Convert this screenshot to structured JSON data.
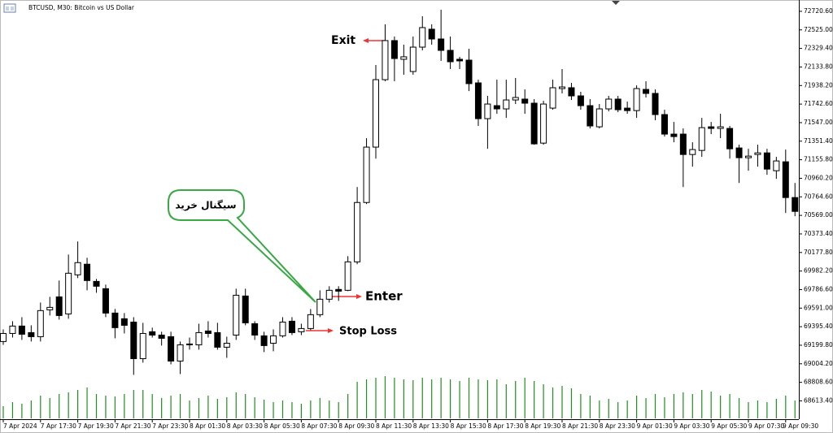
{
  "chart_data": {
    "type": "candlestick",
    "title": "BTCUSD, M30: Bitcoin vs US Dollar",
    "categories": [
      "7 Apr 2024",
      null,
      null,
      null,
      "7 Apr 17:30",
      null,
      null,
      null,
      "7 Apr 19:30",
      null,
      null,
      null,
      "7 Apr 21:30",
      null,
      null,
      null,
      "7 Apr 23:30",
      null,
      null,
      null,
      "8 Apr 01:30",
      null,
      null,
      null,
      "8 Apr 03:30",
      null,
      null,
      null,
      "8 Apr 05:30",
      null,
      null,
      null,
      "8 Apr 07:30",
      null,
      null,
      null,
      "8 Apr 09:30",
      null,
      null,
      null,
      "8 Apr 11:30",
      null,
      null,
      null,
      "8 Apr 13:30",
      null,
      null,
      null,
      "8 Apr 15:30",
      null,
      null,
      null,
      "8 Apr 17:30",
      null,
      null,
      null,
      "8 Apr 19:30",
      null,
      null,
      null,
      "8 Apr 21:30",
      null,
      null,
      null,
      "8 Apr 23:30",
      null,
      null,
      null,
      "9 Apr 01:30",
      null,
      null,
      null,
      "9 Apr 03:30",
      null,
      null,
      null,
      "9 Apr 05:30",
      null,
      null,
      null,
      "9 Apr 07:30",
      null,
      null,
      null,
      "9 Apr 09:30",
      null
    ],
    "open": [
      69239,
      69324,
      69402,
      69333,
      69290,
      69573,
      69710,
      69530,
      69942,
      70054,
      69873,
      69796,
      69539,
      69479,
      69444,
      69058,
      69342,
      69307,
      69290,
      69033,
      69204,
      69204,
      69350,
      69333,
      69179,
      69307,
      69719,
      69427,
      69299,
      69221,
      69299,
      69453,
      69342,
      69376,
      69522,
      69685,
      69788,
      69779,
      70079,
      70705,
      71289,
      72000,
      72412,
      72215,
      72086,
      72343,
      72532,
      72429,
      72309,
      72215,
      72206,
      71966,
      71589,
      71726,
      71692,
      71786,
      71795,
      71752,
      71331,
      71700,
      71906,
      71915,
      71829,
      71726,
      71503,
      71692,
      71795,
      71700,
      71674,
      71897,
      71855,
      71632,
      71426,
      71426,
      71211,
      71254,
      71503,
      71486,
      71486,
      71280,
      71177,
      71211,
      71228,
      71040,
      71134,
      70757
    ],
    "high": [
      69367,
      69453,
      69496,
      69410,
      69650,
      69710,
      69882,
      70156,
      70294,
      70122,
      69899,
      69839,
      69582,
      69539,
      69496,
      69436,
      69385,
      69342,
      69342,
      69239,
      69281,
      69427,
      69453,
      69436,
      69290,
      69796,
      69796,
      69453,
      69342,
      69367,
      69496,
      69496,
      69427,
      69582,
      69779,
      69822,
      69822,
      70139,
      70868,
      71383,
      72155,
      72584,
      72455,
      72369,
      72455,
      72669,
      72584,
      72738,
      72455,
      72241,
      72326,
      72000,
      71829,
      72000,
      72000,
      72018,
      71897,
      71795,
      71777,
      72000,
      72112,
      71966,
      71872,
      71795,
      71743,
      71829,
      71829,
      71769,
      71940,
      71983,
      71897,
      71683,
      71554,
      71486,
      71340,
      71597,
      71554,
      71640,
      71512,
      71314,
      71271,
      71314,
      71271,
      71186,
      71263,
      70911
    ],
    "low": [
      69204,
      69281,
      69256,
      69239,
      69239,
      69513,
      69470,
      69479,
      69908,
      69779,
      69753,
      69496,
      69273,
      69324,
      68887,
      69016,
      69281,
      69196,
      68998,
      68896,
      69153,
      69153,
      69281,
      69153,
      69067,
      69256,
      69410,
      69256,
      69127,
      69136,
      69281,
      69307,
      69307,
      69359,
      69496,
      69650,
      69667,
      69770,
      70054,
      70688,
      71168,
      71983,
      71983,
      72052,
      72052,
      72309,
      72369,
      72198,
      72112,
      72112,
      71880,
      71512,
      71271,
      71640,
      71597,
      71743,
      71640,
      71314,
      71314,
      71683,
      71855,
      71786,
      71683,
      71486,
      71486,
      71666,
      71657,
      71640,
      71597,
      71812,
      71572,
      71400,
      71340,
      70868,
      71083,
      71186,
      71426,
      71383,
      71168,
      70911,
      71040,
      71083,
      70997,
      70954,
      70594,
      70560
    ],
    "close": [
      69324,
      69402,
      69316,
      69290,
      69565,
      69599,
      69513,
      69959,
      70071,
      69882,
      69822,
      69539,
      69385,
      69410,
      69058,
      69324,
      69307,
      69273,
      69033,
      69204,
      69213,
      69333,
      69324,
      69179,
      69221,
      69727,
      69436,
      69307,
      69196,
      69299,
      69444,
      69333,
      69376,
      69522,
      69685,
      69779,
      69770,
      70079,
      70705,
      71289,
      72000,
      72412,
      72223,
      72241,
      72343,
      72549,
      72429,
      72309,
      72189,
      72198,
      71958,
      71589,
      71743,
      71692,
      71786,
      71812,
      71752,
      71323,
      71743,
      71915,
      71923,
      71829,
      71726,
      71512,
      71692,
      71795,
      71683,
      71674,
      71906,
      71855,
      71632,
      71426,
      71400,
      71211,
      71263,
      71494,
      71486,
      71503,
      71271,
      71177,
      71194,
      71228,
      71057,
      71143,
      70757,
      70611
    ],
    "volume": [
      15,
      20,
      18,
      22,
      28,
      25,
      30,
      32,
      35,
      38,
      30,
      28,
      27,
      30,
      35,
      35,
      30,
      25,
      28,
      30,
      22,
      25,
      28,
      24,
      26,
      32,
      30,
      26,
      23,
      20,
      22,
      20,
      18,
      22,
      25,
      22,
      20,
      30,
      45,
      48,
      50,
      52,
      50,
      48,
      47,
      50,
      48,
      50,
      48,
      46,
      50,
      48,
      47,
      48,
      42,
      46,
      50,
      46,
      42,
      38,
      40,
      37,
      30,
      28,
      22,
      24,
      20,
      22,
      28,
      25,
      30,
      26,
      30,
      32,
      30,
      35,
      33,
      28,
      30,
      25,
      20,
      22,
      20,
      24,
      28,
      22
    ],
    "up_color": "#ffffff",
    "down_color": "#000000",
    "volume_color": "#1f8f1f",
    "ylim": [
      68420,
      72840
    ],
    "yticks": [
      {
        "value": 72720.6,
        "label": "72720.60"
      },
      {
        "value": 72525.0,
        "label": "72525.00"
      },
      {
        "value": 72329.4,
        "label": "72329.40"
      },
      {
        "value": 72133.8,
        "label": "72133.80"
      },
      {
        "value": 71938.2,
        "label": "71938.20"
      },
      {
        "value": 71742.6,
        "label": "71742.60"
      },
      {
        "value": 71547.0,
        "label": "71547.00"
      },
      {
        "value": 71351.4,
        "label": "71351.40"
      },
      {
        "value": 71155.8,
        "label": "71155.80"
      },
      {
        "value": 70960.2,
        "label": "70960.20"
      },
      {
        "value": 70764.6,
        "label": "70764.60"
      },
      {
        "value": 70569.0,
        "label": "70569.00"
      },
      {
        "value": 70373.4,
        "label": "70373.40"
      },
      {
        "value": 70177.8,
        "label": "70177.80"
      },
      {
        "value": 69982.2,
        "label": "69982.20"
      },
      {
        "value": 69786.6,
        "label": "69786.60"
      },
      {
        "value": 69591.0,
        "label": "69591.00"
      },
      {
        "value": 69395.4,
        "label": "69395.40"
      },
      {
        "value": 69199.8,
        "label": "69199.80"
      },
      {
        "value": 69004.2,
        "label": "69004.20"
      },
      {
        "value": 68808.6,
        "label": "68808.60"
      },
      {
        "value": 68613.4,
        "label": "68613.40"
      }
    ],
    "grid": false,
    "annotations": [
      {
        "text": "Exit",
        "color": "#2346d8"
      },
      {
        "text": "Enter",
        "color": "#23a336"
      },
      {
        "text": "Stop Loss",
        "color": "#f0394a"
      },
      {
        "text": "سیگنال خرید",
        "color": "#000000"
      }
    ]
  }
}
